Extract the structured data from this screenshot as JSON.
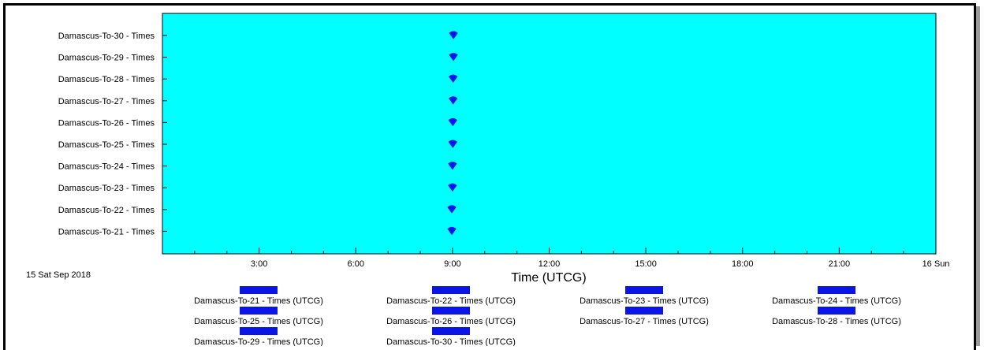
{
  "chart_data": {
    "type": "scatter",
    "plot_background": "#00ffff",
    "marker_color": "#0018f0",
    "legend_swatch_color": "#0a14e6",
    "categories": [
      "Damascus-To-21 - Times",
      "Damascus-To-22 - Times",
      "Damascus-To-23 - Times",
      "Damascus-To-24 - Times",
      "Damascus-To-25 - Times",
      "Damascus-To-26 - Times",
      "Damascus-To-27 - Times",
      "Damascus-To-28 - Times",
      "Damascus-To-29 - Times",
      "Damascus-To-30 - Times"
    ],
    "x_range_hours": [
      0,
      24
    ],
    "x_ticks": [
      {
        "hour": 3,
        "label": "3:00"
      },
      {
        "hour": 6,
        "label": "6:00"
      },
      {
        "hour": 9,
        "label": "9:00"
      },
      {
        "hour": 12,
        "label": "12:00"
      },
      {
        "hour": 15,
        "label": "15:00"
      },
      {
        "hour": 18,
        "label": "18:00"
      },
      {
        "hour": 21,
        "label": "21:00"
      },
      {
        "hour": 24,
        "label": "16 Sun"
      }
    ],
    "start_date_label": "15 Sat  Sep 2018",
    "xlabel": "Time (UTCG)",
    "series": [
      {
        "name": "Damascus-To-21 - Times (UTCG)",
        "category": "Damascus-To-21 - Times",
        "x": [
          8.98
        ]
      },
      {
        "name": "Damascus-To-22 - Times (UTCG)",
        "category": "Damascus-To-22 - Times",
        "x": [
          8.98
        ]
      },
      {
        "name": "Damascus-To-23 - Times (UTCG)",
        "category": "Damascus-To-23 - Times",
        "x": [
          9.0
        ]
      },
      {
        "name": "Damascus-To-24 - Times (UTCG)",
        "category": "Damascus-To-24 - Times",
        "x": [
          9.0
        ]
      },
      {
        "name": "Damascus-To-25 - Times (UTCG)",
        "category": "Damascus-To-25 - Times",
        "x": [
          9.01
        ]
      },
      {
        "name": "Damascus-To-26 - Times (UTCG)",
        "category": "Damascus-To-26 - Times",
        "x": [
          9.01
        ]
      },
      {
        "name": "Damascus-To-27 - Times (UTCG)",
        "category": "Damascus-To-27 - Times",
        "x": [
          9.02
        ]
      },
      {
        "name": "Damascus-To-28 - Times (UTCG)",
        "category": "Damascus-To-28 - Times",
        "x": [
          9.02
        ]
      },
      {
        "name": "Damascus-To-29 - Times (UTCG)",
        "category": "Damascus-To-29 - Times",
        "x": [
          9.03
        ]
      },
      {
        "name": "Damascus-To-30 - Times (UTCG)",
        "category": "Damascus-To-30 - Times",
        "x": [
          9.03
        ]
      }
    ],
    "legend_position": "bottom",
    "grid": false
  }
}
